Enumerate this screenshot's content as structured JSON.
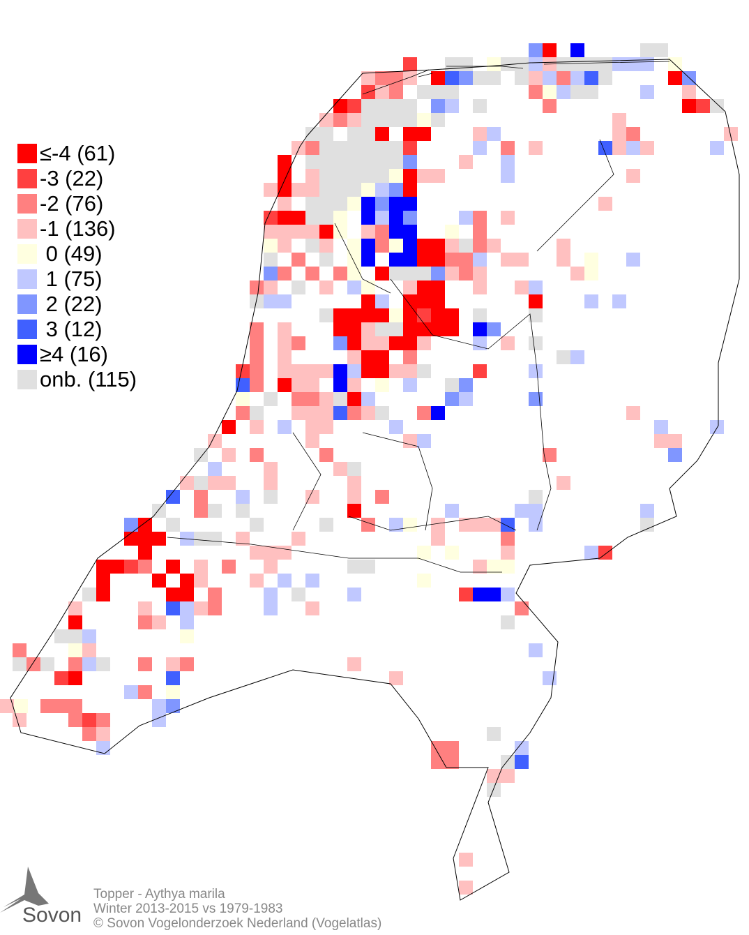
{
  "legend": {
    "items": [
      {
        "label": "≤-4 (61)",
        "color": "#ff0000"
      },
      {
        "label": "-3 (22)",
        "color": "#ff4040"
      },
      {
        "label": "-2 (76)",
        "color": "#ff8080"
      },
      {
        "label": "-1 (136)",
        "color": "#ffc0c0"
      },
      {
        "label": " 0 (49)",
        "color": "#ffffe0"
      },
      {
        "label": " 1 (75)",
        "color": "#c0c8ff"
      },
      {
        "label": " 2 (22)",
        "color": "#8096ff"
      },
      {
        "label": " 3 (12)",
        "color": "#4060ff"
      },
      {
        "label": "≥4 (16)",
        "color": "#0000ff"
      },
      {
        "label": "onb. (115)",
        "color": "#e0e0e0"
      }
    ]
  },
  "footer": {
    "species": "Topper - Aythya marila",
    "period": "Winter 2013-2015 vs 1979-1983",
    "copyright": "© Sovon Vogelonderzoek Nederland (Vogelatlas)"
  },
  "logo": {
    "text": "Sovon",
    "icon": "swallow-logo-icon"
  }
}
